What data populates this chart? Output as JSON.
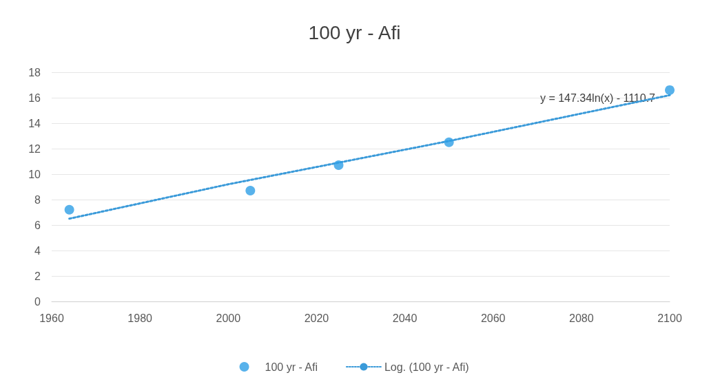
{
  "chart_data": {
    "type": "scatter",
    "title": "100 yr - Afi",
    "series": [
      {
        "name": "100 yr - Afi",
        "marker": "circle",
        "color": "#2e9fe6",
        "x": [
          1964,
          2005,
          2025,
          2050,
          2100
        ],
        "values": [
          7.2,
          8.7,
          10.7,
          12.5,
          16.6
        ]
      },
      {
        "name": "Log. (100 yr - Afi)",
        "type": "line",
        "marker": "none",
        "line_style": "dotted",
        "color": "#3a9ad9",
        "x": [
          1964,
          2000,
          2025,
          2050,
          2100
        ],
        "values": [
          6.5,
          9.2,
          10.9,
          12.6,
          16.2
        ]
      }
    ],
    "annotations": [
      "y = 147.34ln(x) - 1110.7"
    ],
    "xlim": [
      1960,
      2100
    ],
    "xticks": [
      1960,
      1980,
      2000,
      2020,
      2040,
      2060,
      2080,
      2100
    ],
    "ylim": [
      0,
      18
    ],
    "yticks": [
      0,
      2,
      4,
      6,
      8,
      10,
      12,
      14,
      16,
      18
    ],
    "grid": "y",
    "legend": "bottom"
  }
}
